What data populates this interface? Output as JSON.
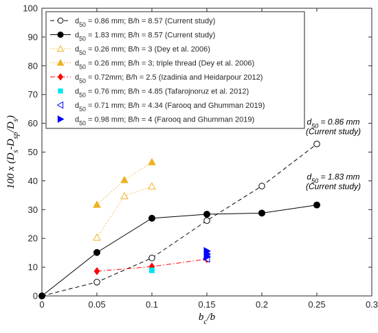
{
  "chart_data": {
    "type": "line",
    "xlabel": "b_c/b",
    "ylabel": "100 x (D_s-D_sp/D_s)",
    "xlim": [
      0,
      0.3
    ],
    "ylim": [
      0,
      100
    ],
    "xticks": [
      "0",
      "0.05",
      "0.1",
      "0.15",
      "0.2",
      "0.25",
      "0.3"
    ],
    "yticks": [
      "0",
      "10",
      "20",
      "30",
      "40",
      "50",
      "60",
      "70",
      "80",
      "90",
      "100"
    ],
    "grid": false,
    "legend_position": "top-left",
    "series": [
      {
        "name": "d50 = 0.86 mm; B/h = 8.57  (Current study)",
        "color": "#000000",
        "line": "dashed",
        "marker": "circle-open",
        "x": [
          0,
          0.05,
          0.1,
          0.15,
          0.2,
          0.25
        ],
        "y": [
          0,
          4.8,
          13.2,
          26.2,
          38.2,
          52.8
        ]
      },
      {
        "name": "d50 = 1.83 mm; B/h = 8.57  (Current study)",
        "color": "#000000",
        "line": "solid",
        "marker": "circle-filled",
        "x": [
          0,
          0.05,
          0.1,
          0.15,
          0.2,
          0.25
        ],
        "y": [
          0,
          15.1,
          27.0,
          28.4,
          28.8,
          31.6
        ]
      },
      {
        "name": "d50 = 0.26 mm; B/h = 3 (Dey et al. 2006)",
        "color": "#EDB120",
        "line": "dotted",
        "marker": "triangle-open",
        "x": [
          0.05,
          0.075,
          0.1
        ],
        "y": [
          20.3,
          34.7,
          38.1
        ]
      },
      {
        "name": "d50 = 0.26 mm; B/h = 3; triple thread (Dey et al. 2006)",
        "color": "#EDB120",
        "line": "dotted",
        "marker": "triangle-filled",
        "x": [
          0.05,
          0.075,
          0.1
        ],
        "y": [
          31.7,
          40.3,
          46.5
        ]
      },
      {
        "name": "d50 = 0.72mm; B/h = 2.5 (Izadinia and Heidarpour 2012)",
        "color": "#FF0000",
        "line": "dashdot",
        "marker": "diamond-filled",
        "x": [
          0.05,
          0.1,
          0.15
        ],
        "y": [
          8.6,
          10.2,
          12.8
        ]
      },
      {
        "name": "d50 = 0.76 mm; B/h = 4.85 (Tafarojnoruz et al. 2012)",
        "color": "#00E5EE",
        "line": "none",
        "marker": "square-filled",
        "x": [
          0.1
        ],
        "y": [
          8.9
        ]
      },
      {
        "name": "d50 = 0.71 mm; B/h = 4.34 (Farooq and Ghumman 2019)",
        "color": "#0000FF",
        "line": "none",
        "marker": "triangle-left-open",
        "x": [
          0.15
        ],
        "y": [
          12.9
        ]
      },
      {
        "name": "d50 = 0.98 mm; B/h = 4 (Farooq and Ghumman 2019)",
        "color": "#0000FF",
        "line": "none",
        "marker": "triangle-right-filled",
        "x": [
          0.15,
          0.15,
          0.15
        ],
        "y": [
          13.6,
          14.6,
          15.6
        ]
      }
    ],
    "annotations": [
      {
        "text": "d50 = 0.86 mm",
        "sub": "(Current study)",
        "x": 0.24,
        "y": 59.5
      },
      {
        "text": "d50 = 1.83 mm",
        "sub": "(Current study)",
        "x": 0.24,
        "y": 40.5
      }
    ]
  }
}
